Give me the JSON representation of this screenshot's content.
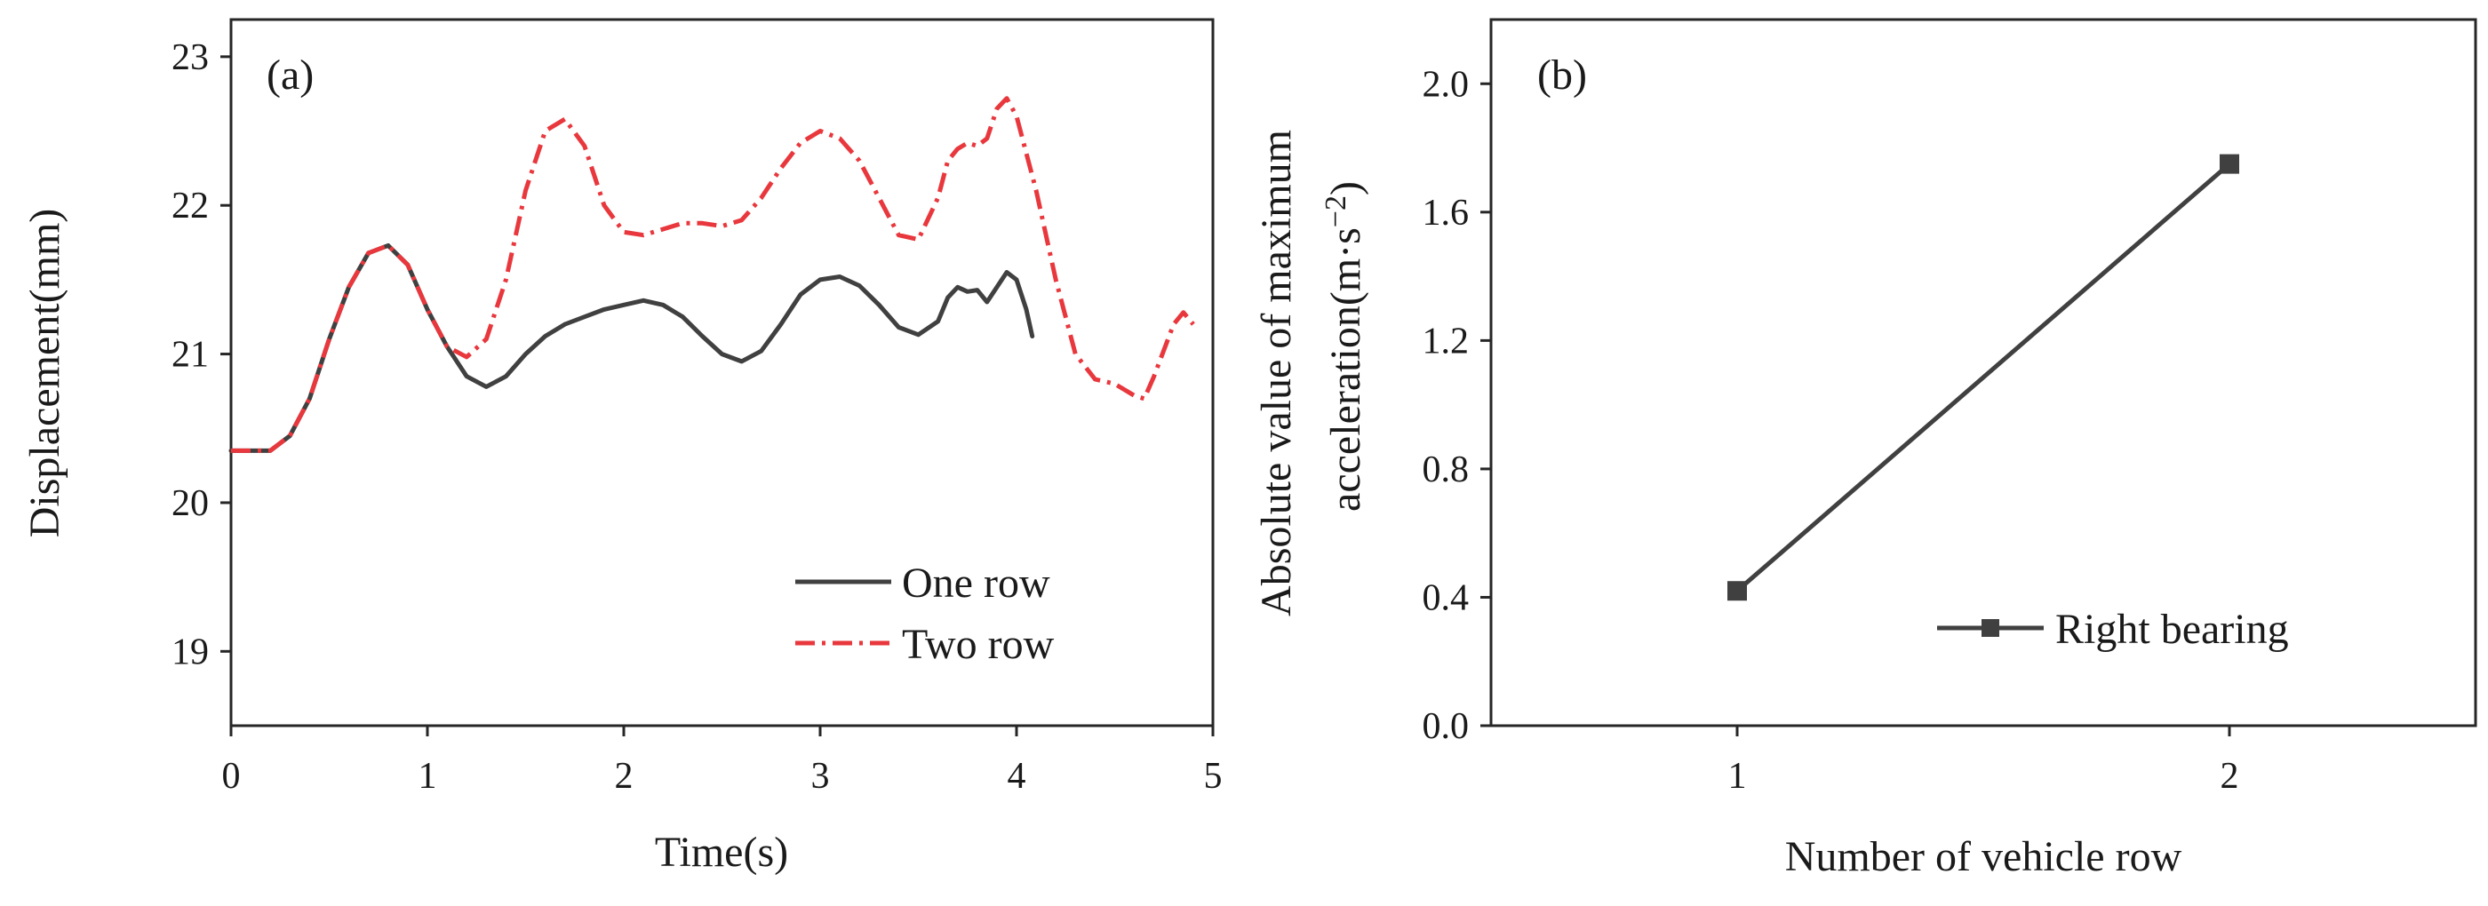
{
  "chart_data": [
    {
      "type": "line",
      "panel_label": "(a)",
      "xlabel": "Time(s)",
      "ylabel": "Displacement(mm)",
      "xlim": [
        0,
        5
      ],
      "ylim": [
        18.5,
        23.25
      ],
      "xticks": [
        "0",
        "1",
        "2",
        "3",
        "4",
        "5"
      ],
      "xtick_values": [
        0,
        1,
        2,
        3,
        4,
        5
      ],
      "yticks": [
        "19",
        "20",
        "21",
        "22",
        "23"
      ],
      "ytick_values": [
        19,
        20,
        21,
        22,
        23
      ],
      "legend_position": "bottom-right",
      "series": [
        {
          "name": "One row",
          "color": "#404040",
          "style": "solid",
          "points": [
            [
              0,
              20.35
            ],
            [
              0.2,
              20.35
            ],
            [
              0.3,
              20.45
            ],
            [
              0.4,
              20.7
            ],
            [
              0.5,
              21.1
            ],
            [
              0.6,
              21.45
            ],
            [
              0.7,
              21.68
            ],
            [
              0.8,
              21.73
            ],
            [
              0.9,
              21.6
            ],
            [
              1.0,
              21.3
            ],
            [
              1.1,
              21.05
            ],
            [
              1.2,
              20.85
            ],
            [
              1.3,
              20.78
            ],
            [
              1.4,
              20.85
            ],
            [
              1.5,
              21.0
            ],
            [
              1.6,
              21.12
            ],
            [
              1.7,
              21.2
            ],
            [
              1.8,
              21.25
            ],
            [
              1.9,
              21.3
            ],
            [
              2.0,
              21.33
            ],
            [
              2.1,
              21.36
            ],
            [
              2.2,
              21.33
            ],
            [
              2.3,
              21.25
            ],
            [
              2.4,
              21.12
            ],
            [
              2.5,
              21.0
            ],
            [
              2.6,
              20.95
            ],
            [
              2.7,
              21.02
            ],
            [
              2.8,
              21.2
            ],
            [
              2.9,
              21.4
            ],
            [
              3.0,
              21.5
            ],
            [
              3.1,
              21.52
            ],
            [
              3.2,
              21.46
            ],
            [
              3.3,
              21.33
            ],
            [
              3.4,
              21.18
            ],
            [
              3.5,
              21.13
            ],
            [
              3.6,
              21.22
            ],
            [
              3.65,
              21.38
            ],
            [
              3.7,
              21.45
            ],
            [
              3.75,
              21.42
            ],
            [
              3.8,
              21.43
            ],
            [
              3.85,
              21.35
            ],
            [
              3.9,
              21.45
            ],
            [
              3.95,
              21.55
            ],
            [
              4.0,
              21.5
            ],
            [
              4.05,
              21.3
            ],
            [
              4.08,
              21.12
            ]
          ]
        },
        {
          "name": "Two row",
          "color": "#e8383d",
          "style": "dash-dot",
          "points": [
            [
              0,
              20.35
            ],
            [
              0.2,
              20.35
            ],
            [
              0.3,
              20.45
            ],
            [
              0.4,
              20.7
            ],
            [
              0.5,
              21.1
            ],
            [
              0.6,
              21.45
            ],
            [
              0.7,
              21.68
            ],
            [
              0.8,
              21.73
            ],
            [
              0.9,
              21.6
            ],
            [
              1.0,
              21.3
            ],
            [
              1.1,
              21.05
            ],
            [
              1.2,
              20.98
            ],
            [
              1.3,
              21.1
            ],
            [
              1.4,
              21.5
            ],
            [
              1.5,
              22.1
            ],
            [
              1.6,
              22.5
            ],
            [
              1.7,
              22.58
            ],
            [
              1.8,
              22.4
            ],
            [
              1.9,
              22.0
            ],
            [
              2.0,
              21.82
            ],
            [
              2.1,
              21.8
            ],
            [
              2.2,
              21.84
            ],
            [
              2.3,
              21.88
            ],
            [
              2.4,
              21.88
            ],
            [
              2.5,
              21.86
            ],
            [
              2.6,
              21.9
            ],
            [
              2.7,
              22.05
            ],
            [
              2.8,
              22.25
            ],
            [
              2.9,
              22.42
            ],
            [
              3.0,
              22.5
            ],
            [
              3.1,
              22.45
            ],
            [
              3.2,
              22.3
            ],
            [
              3.3,
              22.05
            ],
            [
              3.4,
              21.8
            ],
            [
              3.5,
              21.77
            ],
            [
              3.6,
              22.05
            ],
            [
              3.65,
              22.3
            ],
            [
              3.7,
              22.38
            ],
            [
              3.75,
              22.42
            ],
            [
              3.8,
              22.4
            ],
            [
              3.85,
              22.45
            ],
            [
              3.9,
              22.65
            ],
            [
              3.95,
              22.72
            ],
            [
              4.0,
              22.6
            ],
            [
              4.1,
              22.1
            ],
            [
              4.2,
              21.5
            ],
            [
              4.3,
              21.0
            ],
            [
              4.4,
              20.83
            ],
            [
              4.5,
              20.8
            ],
            [
              4.6,
              20.72
            ],
            [
              4.65,
              20.7
            ],
            [
              4.7,
              20.85
            ],
            [
              4.8,
              21.2
            ],
            [
              4.85,
              21.28
            ],
            [
              4.9,
              21.2
            ]
          ]
        }
      ]
    },
    {
      "type": "line",
      "panel_label": "(b)",
      "xlabel": "Number of vehicle row",
      "ylabel_line1": "Absolute value of maximum",
      "ylabel_line2": "acceleration(m·s",
      "ylabel_superscript": "−2",
      "ylabel_close": ")",
      "xlim": [
        0.5,
        2.5
      ],
      "ylim": [
        0,
        2.2
      ],
      "xticks": [
        "1",
        "2"
      ],
      "xtick_values": [
        1,
        2
      ],
      "yticks": [
        "0.0",
        "0.4",
        "0.8",
        "1.2",
        "1.6",
        "2.0"
      ],
      "ytick_values": [
        0,
        0.4,
        0.8,
        1.2,
        1.6,
        2.0
      ],
      "legend_position": "bottom-right",
      "series": [
        {
          "name": "Right bearing",
          "color": "#404040",
          "style": "solid",
          "marker": "square",
          "points": [
            [
              1,
              0.42
            ],
            [
              2,
              1.75
            ]
          ]
        }
      ]
    }
  ]
}
